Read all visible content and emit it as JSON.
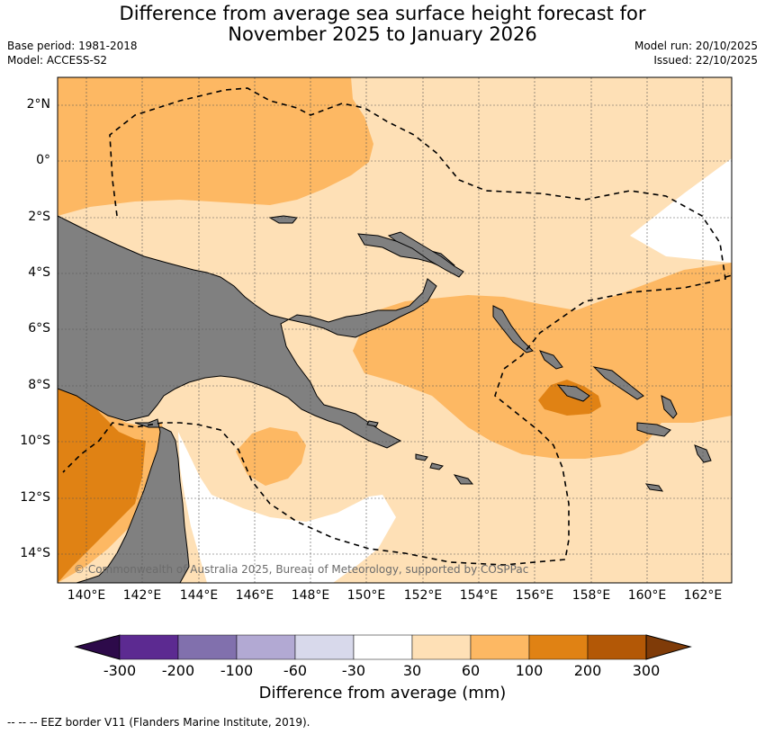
{
  "title": {
    "line1": "Difference from average sea surface height forecast for",
    "line2": "November 2025 to January 2026"
  },
  "meta_left": {
    "base_period": "Base period: 1981-2018",
    "model": "Model: ACCESS-S2"
  },
  "meta_right": {
    "model_run": "Model run: 20/10/2025",
    "issued": "Issued: 22/10/2025"
  },
  "map": {
    "lat_labels": [
      "2°N",
      "0°",
      "2°S",
      "4°S",
      "6°S",
      "8°S",
      "10°S",
      "12°S",
      "14°S"
    ],
    "lon_labels": [
      "140°E",
      "142°E",
      "144°E",
      "146°E",
      "148°E",
      "150°E",
      "152°E",
      "154°E",
      "156°E",
      "158°E",
      "160°E",
      "162°E"
    ],
    "credit": "© Commonwealth of Australia 2025, Bureau of Meteorology, supported by COSPPac",
    "land_color": "#808080",
    "eez_style": "dashed black"
  },
  "colorbar": {
    "bins": [
      "#2d0a4a",
      "#5c2a91",
      "#8170ad",
      "#b2a9d3",
      "#d8d9eb",
      "#ffffff",
      "#fee0b6",
      "#fdb863",
      "#e08214",
      "#b35806",
      "#7f3b08"
    ],
    "labels": [
      "-300",
      "-200",
      "-100",
      "-60",
      "-30",
      "30",
      "60",
      "100",
      "200",
      "300"
    ],
    "title": "Difference from average (mm)"
  },
  "footer": "--  --  -- EEZ border V11 (Flanders Marine Institute, 2019)."
}
